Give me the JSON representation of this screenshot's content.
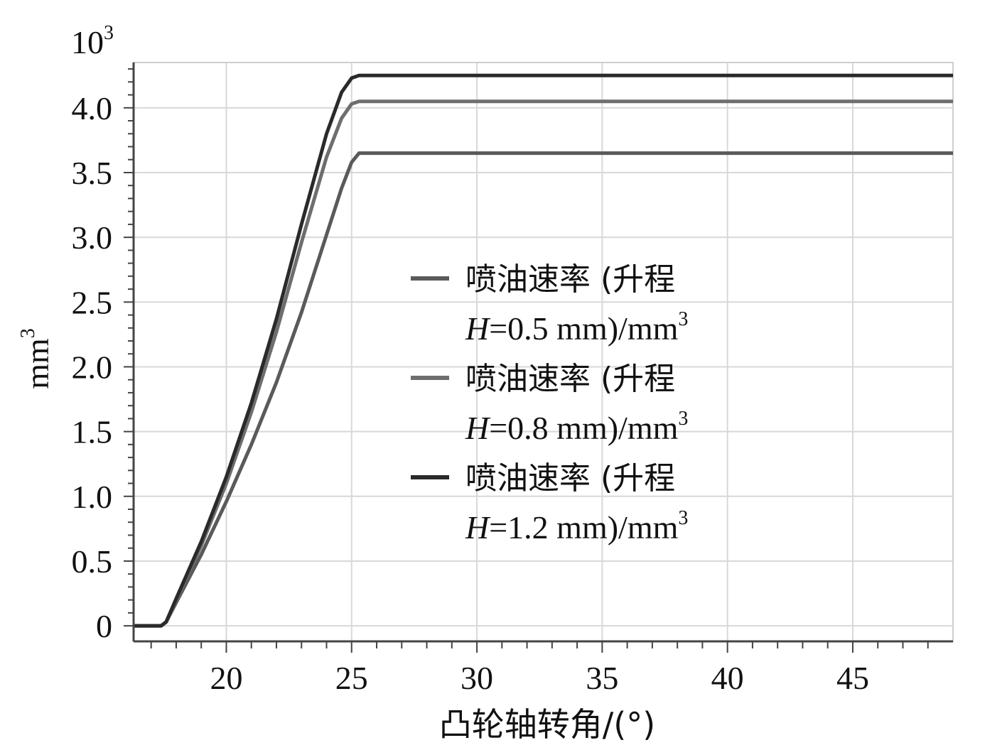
{
  "chart_data": {
    "type": "line",
    "xlabel": "凸轮轴转角/(°)",
    "ylabel": "mm",
    "ylabel_sup": "3",
    "y_multiplier_base": "10",
    "y_multiplier_exp": "3",
    "xlim": [
      16.3,
      49
    ],
    "ylim": [
      -0.12,
      4.35
    ],
    "x_ticks": [
      20,
      25,
      30,
      35,
      40,
      45
    ],
    "x_tick_labels": [
      "20",
      "25",
      "30",
      "35",
      "40",
      "45"
    ],
    "y_ticks": [
      0,
      0.5,
      1.0,
      1.5,
      2.0,
      2.5,
      3.0,
      3.5,
      4.0
    ],
    "y_tick_labels": [
      "0",
      "0.5",
      "1.0",
      "1.5",
      "2.0",
      "2.5",
      "3.0",
      "3.5",
      "4.0"
    ],
    "grid": true,
    "legend_position": "center-right",
    "series": [
      {
        "name_prefix": "喷油速率 (升程",
        "name_var": "H",
        "name_suffix": "=0.5 mm)/mm",
        "name_sup": "3",
        "color": "#5a5a5a",
        "x": [
          16.3,
          17.4,
          17.6,
          18.0,
          19.0,
          20.0,
          21.0,
          22.0,
          23.0,
          24.0,
          24.6,
          25.0,
          25.3,
          49
        ],
        "y": [
          0,
          0,
          0.03,
          0.18,
          0.55,
          0.96,
          1.4,
          1.88,
          2.42,
          3.02,
          3.38,
          3.58,
          3.65,
          3.65
        ]
      },
      {
        "name_prefix": "喷油速率 (升程",
        "name_var": "H",
        "name_suffix": "=0.8 mm)/mm",
        "name_sup": "3",
        "color": "#6e6e6e",
        "x": [
          16.3,
          17.4,
          17.6,
          18.0,
          19.0,
          20.0,
          21.0,
          22.0,
          23.0,
          24.0,
          24.6,
          25.0,
          25.3,
          49
        ],
        "y": [
          0,
          0,
          0.03,
          0.2,
          0.62,
          1.1,
          1.65,
          2.27,
          2.96,
          3.62,
          3.92,
          4.03,
          4.05,
          4.05
        ]
      },
      {
        "name_prefix": "喷油速率 (升程",
        "name_var": "H",
        "name_suffix": "=1.2 mm)/mm",
        "name_sup": "3",
        "color": "#2a2a2a",
        "x": [
          16.3,
          17.4,
          17.6,
          18.0,
          19.0,
          20.0,
          21.0,
          22.0,
          23.0,
          24.0,
          24.6,
          25.0,
          25.3,
          49
        ],
        "y": [
          0,
          0,
          0.03,
          0.21,
          0.65,
          1.15,
          1.72,
          2.37,
          3.1,
          3.8,
          4.12,
          4.23,
          4.25,
          4.25
        ]
      }
    ]
  }
}
